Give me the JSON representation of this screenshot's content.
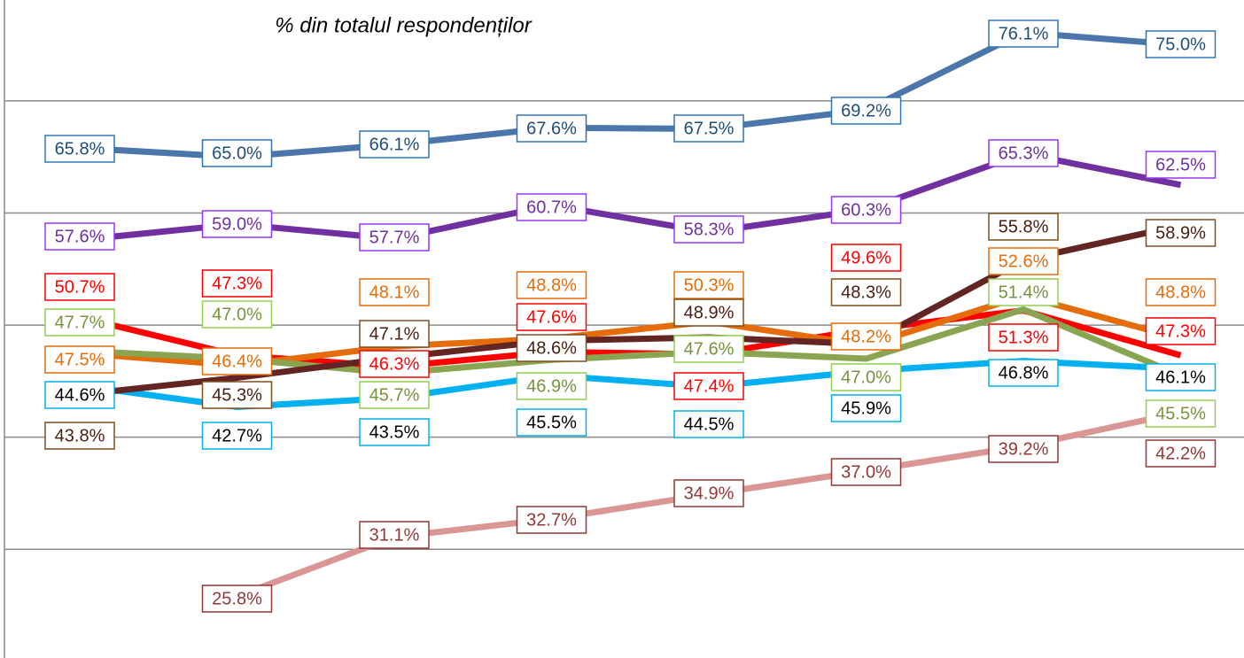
{
  "chart_data": {
    "type": "line",
    "title": "% din totalul respondenților",
    "ylim": [
      20.3,
      79
    ],
    "yticks": [
      30,
      40,
      50,
      60,
      70
    ],
    "grid": true,
    "series": [
      {
        "color": "#4a76aa",
        "label_color": "#1f4e79",
        "label_border": "#2e75b6",
        "values": [
          65.8,
          65.0,
          66.1,
          67.6,
          67.5,
          69.2,
          76.1,
          75.0
        ],
        "value_labels": [
          "65.8%",
          "65.0%",
          "66.1%",
          "67.6%",
          "67.5%",
          "69.2%",
          "76.1%",
          "75.0%"
        ]
      },
      {
        "color": "#7030a0",
        "label_color": "#7030a0",
        "label_border": "#9933ff",
        "values": [
          57.6,
          59.0,
          57.7,
          60.7,
          58.3,
          60.3,
          65.3,
          62.5
        ],
        "value_labels": [
          "57.6%",
          "59.0%",
          "57.7%",
          "60.7%",
          "58.3%",
          "60.3%",
          "65.3%",
          "62.5%"
        ]
      },
      {
        "color": "#ff0000",
        "label_color": "#ff0000",
        "label_border": "#ff0000",
        "values": [
          50.7,
          47.3,
          46.3,
          47.6,
          47.4,
          49.6,
          51.3,
          47.3
        ],
        "value_labels": [
          "50.7%",
          "47.3%",
          "46.3%",
          "47.6%",
          "47.4%",
          "49.6%",
          "51.3%",
          "47.3%"
        ]
      },
      {
        "color": "#e46c0a",
        "label_color": "#e46c0a",
        "label_border": "#e46c0a",
        "values": [
          47.5,
          46.4,
          48.1,
          48.8,
          50.3,
          48.2,
          52.6,
          48.8
        ],
        "value_labels": [
          "47.5%",
          "46.4%",
          "48.1%",
          "48.8%",
          "50.3%",
          "48.2%",
          "52.6%",
          "48.8%"
        ]
      },
      {
        "color": "#8aa552",
        "label_color": "#77933c",
        "label_border": "#92d050",
        "values": [
          47.7,
          47.0,
          45.7,
          46.9,
          47.6,
          47.0,
          51.4,
          45.5
        ],
        "value_labels": [
          "47.7%",
          "47.0%",
          "45.7%",
          "46.9%",
          "47.6%",
          "47.0%",
          "51.4%",
          "45.5%"
        ]
      },
      {
        "color": "#00b0f0",
        "label_color": "#000000",
        "label_border": "#00b0f0",
        "values": [
          44.6,
          42.7,
          43.5,
          45.5,
          44.5,
          45.9,
          46.8,
          46.1
        ],
        "value_labels": [
          "44.6%",
          "42.7%",
          "43.5%",
          "45.5%",
          "44.5%",
          "45.9%",
          "46.8%",
          "46.1%"
        ]
      },
      {
        "color": "#632523",
        "label_color": "#4a2010",
        "label_border": "#7f4f1f",
        "values": [
          43.8,
          45.3,
          47.1,
          48.6,
          48.9,
          48.3,
          55.8,
          58.9
        ],
        "value_labels": [
          "43.8%",
          "45.3%",
          "47.1%",
          "48.6%",
          "48.9%",
          "48.3%",
          "55.8%",
          "58.9%"
        ]
      },
      {
        "color": "#d99694",
        "label_color": "#953735",
        "label_border": "#953735",
        "values": [
          null,
          25.8,
          31.1,
          32.7,
          34.9,
          37.0,
          39.2,
          42.2
        ],
        "value_labels": [
          null,
          "25.8%",
          "31.1%",
          "32.7%",
          "34.9%",
          "37.0%",
          "39.2%",
          "42.2%"
        ]
      }
    ]
  }
}
